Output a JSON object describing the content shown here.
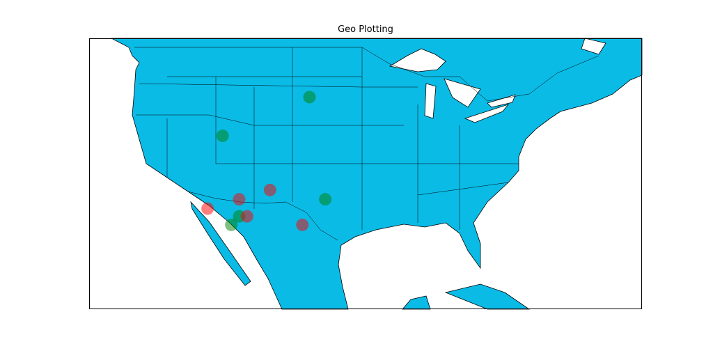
{
  "chart_data": {
    "type": "scatter",
    "title": "Geo Plotting",
    "xlim": [
      -130,
      -60
    ],
    "ylim": [
      15,
      50
    ],
    "series": [
      {
        "color": "#008000",
        "x": [
          -102.1,
          -113.1,
          -100.1,
          -111.0,
          -112.0
        ],
        "values": [
          42.4,
          37.4,
          29.2,
          27.0,
          25.9
        ]
      },
      {
        "color": "#ff0000",
        "x": [
          -115.0,
          -111.0,
          -107.1,
          -110.0,
          -103.0
        ],
        "values": [
          28.0,
          29.2,
          30.4,
          27.0,
          25.9
        ]
      }
    ]
  }
}
